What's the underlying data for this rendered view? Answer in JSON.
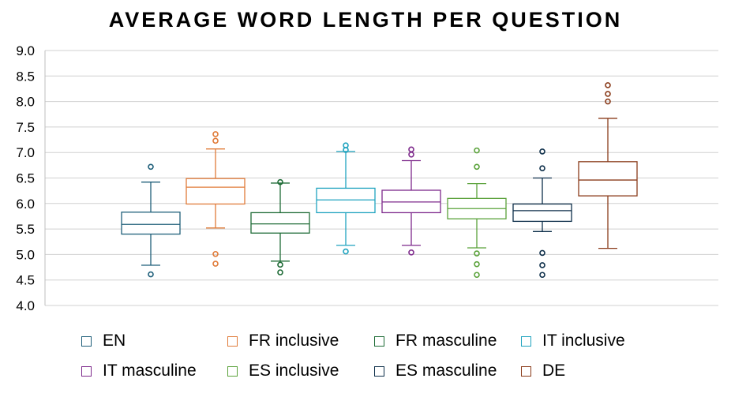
{
  "chart_data": {
    "type": "box",
    "title": "AVERAGE WORD LENGTH PER QUESTION",
    "xlabel": "",
    "ylabel": "",
    "ylim": [
      4.0,
      9.0
    ],
    "yticks": [
      "4.0",
      "4.5",
      "5.0",
      "5.5",
      "6.0",
      "6.5",
      "7.0",
      "7.5",
      "8.0",
      "8.5",
      "9.0"
    ],
    "grid": true,
    "legend_position": "bottom",
    "series": [
      {
        "name": "EN",
        "color": "#1f5f7a",
        "min": 4.79,
        "q1": 5.4,
        "median": 5.59,
        "q3": 5.83,
        "max": 6.42,
        "outliers": [
          6.72,
          4.61
        ]
      },
      {
        "name": "FR inclusive",
        "color": "#e07b39",
        "min": 5.52,
        "q1": 5.99,
        "median": 6.32,
        "q3": 6.49,
        "max": 7.07,
        "outliers": [
          7.36,
          7.23,
          5.01,
          4.82
        ]
      },
      {
        "name": "FR masculine",
        "color": "#1e6b36",
        "min": 4.87,
        "q1": 5.42,
        "median": 5.6,
        "q3": 5.82,
        "max": 6.4,
        "outliers": [
          6.42,
          4.8,
          4.65
        ]
      },
      {
        "name": "IT inclusive",
        "color": "#1fa3bf",
        "min": 5.18,
        "q1": 5.82,
        "median": 6.07,
        "q3": 6.3,
        "max": 7.02,
        "outliers": [
          7.14,
          7.05,
          5.06
        ]
      },
      {
        "name": "IT masculine",
        "color": "#7e2a8c",
        "min": 5.18,
        "q1": 5.82,
        "median": 6.03,
        "q3": 6.26,
        "max": 6.84,
        "outliers": [
          7.06,
          6.96,
          5.04
        ]
      },
      {
        "name": "ES inclusive",
        "color": "#5aa23a",
        "min": 5.13,
        "q1": 5.7,
        "median": 5.9,
        "q3": 6.1,
        "max": 6.39,
        "outliers": [
          7.04,
          6.72,
          5.02,
          4.81,
          4.6
        ]
      },
      {
        "name": "ES masculine",
        "color": "#0e2f4a",
        "min": 5.45,
        "q1": 5.65,
        "median": 5.86,
        "q3": 5.99,
        "max": 6.5,
        "outliers": [
          7.02,
          6.69,
          5.03,
          4.79,
          4.6
        ]
      },
      {
        "name": "DE",
        "color": "#8a3b1a",
        "min": 5.12,
        "q1": 6.15,
        "median": 6.46,
        "q3": 6.82,
        "max": 7.67,
        "outliers": [
          8.32,
          8.15,
          8.0
        ]
      }
    ]
  }
}
